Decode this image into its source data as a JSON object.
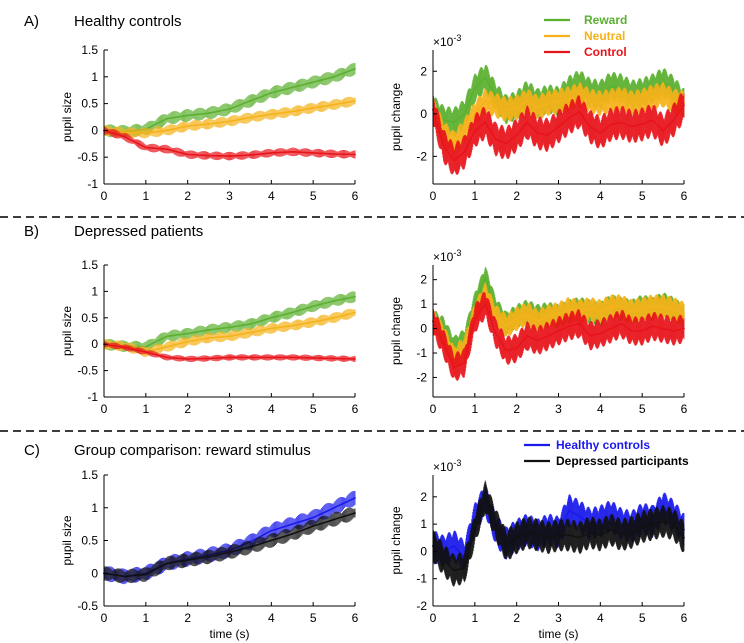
{
  "panels": [
    {
      "letter": "A)",
      "title": "Healthy controls"
    },
    {
      "letter": "B)",
      "title": "Depressed patients"
    },
    {
      "letter": "C)",
      "title": "Group comparison: reward stimulus"
    }
  ],
  "exponent_label": "×10",
  "exponent_power": "-3",
  "colors": {
    "Reward": "#5bb030",
    "Neutral": "#f5b21a",
    "Control": "#e8141b",
    "Healthy controls": "#1a1aeb",
    "Depressed participants": "#111111"
  },
  "chart_data": [
    {
      "id": "A-size",
      "type": "line",
      "panel": "A)",
      "xlabel": "",
      "ylabel": "pupil size",
      "xlim": [
        0,
        6
      ],
      "ylim": [
        -1,
        1.5
      ],
      "xticks": [
        "0",
        "1",
        "2",
        "3",
        "4",
        "5",
        "6"
      ],
      "yticks": [
        "-1",
        "-0.5",
        "0",
        "0.5",
        "1",
        "1.5"
      ],
      "x": [
        0,
        0.5,
        1,
        1.5,
        2,
        2.5,
        3,
        3.5,
        4,
        4.5,
        5,
        5.5,
        6
      ],
      "series": [
        {
          "name": "Reward",
          "values": [
            0,
            -0.02,
            0.02,
            0.22,
            0.28,
            0.32,
            0.4,
            0.55,
            0.7,
            0.8,
            0.9,
            1.0,
            1.15
          ],
          "err": 0.12
        },
        {
          "name": "Neutral",
          "values": [
            0,
            -0.04,
            -0.05,
            0.0,
            0.08,
            0.12,
            0.17,
            0.24,
            0.3,
            0.35,
            0.42,
            0.48,
            0.55
          ],
          "err": 0.1
        },
        {
          "name": "Control",
          "values": [
            0,
            -0.12,
            -0.32,
            -0.35,
            -0.45,
            -0.47,
            -0.48,
            -0.46,
            -0.42,
            -0.4,
            -0.42,
            -0.44,
            -0.45
          ],
          "err": 0.08
        }
      ]
    },
    {
      "id": "A-change",
      "type": "line",
      "panel": "A)",
      "xlabel": "",
      "ylabel": "pupil change",
      "scale_exponent": "-3",
      "xlim": [
        0,
        6
      ],
      "ylim": [
        -3.3,
        3
      ],
      "xticks": [
        "0",
        "1",
        "2",
        "3",
        "4",
        "5",
        "6"
      ],
      "yticks": [
        "-2",
        "0",
        "2"
      ],
      "legend": {
        "position": "top-right",
        "entries": [
          "Reward",
          "Neutral",
          "Control"
        ]
      },
      "x": [
        0,
        0.25,
        0.5,
        0.75,
        1,
        1.25,
        1.5,
        1.75,
        2,
        2.25,
        2.5,
        2.75,
        3,
        3.25,
        3.5,
        3.75,
        4,
        4.25,
        4.5,
        4.75,
        5,
        5.25,
        5.5,
        5.75,
        6
      ],
      "series": [
        {
          "name": "Reward",
          "values": [
            0.2,
            -0.3,
            -0.4,
            0.0,
            1.2,
            1.7,
            0.8,
            0.2,
            0.4,
            0.9,
            0.5,
            0.7,
            0.6,
            1.1,
            1.4,
            1.0,
            0.9,
            1.3,
            1.2,
            0.9,
            1.0,
            1.2,
            1.5,
            1.1,
            0.5
          ],
          "err": 0.7
        },
        {
          "name": "Neutral",
          "values": [
            0.2,
            -0.9,
            -1.4,
            -0.8,
            0.0,
            0.6,
            0.4,
            0.2,
            0.3,
            0.6,
            0.3,
            0.5,
            0.6,
            0.7,
            0.9,
            0.6,
            0.5,
            0.6,
            0.7,
            0.5,
            0.6,
            0.8,
            0.9,
            0.6,
            0.5
          ],
          "err": 0.6
        },
        {
          "name": "Control",
          "values": [
            0.2,
            -1.5,
            -2.2,
            -1.8,
            -0.8,
            -0.4,
            -1.2,
            -1.4,
            -1.0,
            -0.4,
            -0.9,
            -1.0,
            -0.6,
            -0.2,
            0.1,
            -0.6,
            -0.9,
            -0.5,
            -0.4,
            -0.6,
            -0.5,
            -0.3,
            -0.8,
            -0.3,
            0.4
          ],
          "err": 0.8
        }
      ]
    },
    {
      "id": "B-size",
      "type": "line",
      "panel": "B)",
      "xlabel": "",
      "ylabel": "pupil size",
      "xlim": [
        0,
        6
      ],
      "ylim": [
        -1,
        1.5
      ],
      "xticks": [
        "0",
        "1",
        "2",
        "3",
        "4",
        "5",
        "6"
      ],
      "yticks": [
        "-1",
        "-0.5",
        "0",
        "0.5",
        "1",
        "1.5"
      ],
      "x": [
        0,
        0.5,
        1,
        1.5,
        2,
        2.5,
        3,
        3.5,
        4,
        4.5,
        5,
        5.5,
        6
      ],
      "series": [
        {
          "name": "Reward",
          "values": [
            0,
            -0.04,
            -0.05,
            0.15,
            0.2,
            0.27,
            0.32,
            0.38,
            0.5,
            0.6,
            0.72,
            0.82,
            0.9
          ],
          "err": 0.11
        },
        {
          "name": "Neutral",
          "values": [
            0,
            -0.04,
            -0.15,
            -0.05,
            0.05,
            0.12,
            0.15,
            0.22,
            0.3,
            0.35,
            0.42,
            0.5,
            0.6
          ],
          "err": 0.1
        },
        {
          "name": "Control",
          "values": [
            0,
            -0.06,
            -0.15,
            -0.25,
            -0.28,
            -0.27,
            -0.25,
            -0.25,
            -0.25,
            -0.25,
            -0.26,
            -0.27,
            -0.28
          ],
          "err": 0.06
        }
      ]
    },
    {
      "id": "B-change",
      "type": "line",
      "panel": "B)",
      "xlabel": "",
      "ylabel": "pupil change",
      "scale_exponent": "-3",
      "xlim": [
        0,
        6
      ],
      "ylim": [
        -2.8,
        2.6
      ],
      "xticks": [
        "0",
        "1",
        "2",
        "3",
        "4",
        "5",
        "6"
      ],
      "yticks": [
        "-2",
        "-1",
        "0",
        "1",
        "2"
      ],
      "x": [
        0,
        0.25,
        0.5,
        0.75,
        1,
        1.25,
        1.5,
        1.75,
        2,
        2.25,
        2.5,
        2.75,
        3,
        3.25,
        3.5,
        3.75,
        4,
        4.25,
        4.5,
        4.75,
        5,
        5.25,
        5.5,
        5.75,
        6
      ],
      "series": [
        {
          "name": "Reward",
          "values": [
            0.3,
            0.0,
            -0.8,
            -0.5,
            1.0,
            2.1,
            0.8,
            0.2,
            0.5,
            0.7,
            0.5,
            0.6,
            0.5,
            0.7,
            0.8,
            0.7,
            0.6,
            0.9,
            0.8,
            0.7,
            0.9,
            0.8,
            1.0,
            0.8,
            0.5
          ],
          "err": 0.5
        },
        {
          "name": "Neutral",
          "values": [
            0.3,
            -0.3,
            -1.2,
            -0.8,
            0.6,
            1.4,
            0.5,
            0.1,
            0.4,
            0.6,
            0.3,
            0.5,
            0.6,
            0.8,
            0.7,
            0.8,
            0.7,
            0.9,
            0.9,
            0.7,
            0.8,
            0.9,
            0.9,
            0.8,
            0.6
          ],
          "err": 0.5
        },
        {
          "name": "Control",
          "values": [
            0.3,
            -0.6,
            -1.6,
            -1.4,
            0.4,
            1.0,
            -0.2,
            -0.9,
            -0.8,
            -0.3,
            -0.5,
            -0.3,
            -0.1,
            0.1,
            0.2,
            -0.3,
            -0.2,
            0.0,
            0.2,
            -0.1,
            -0.1,
            0.1,
            0.0,
            -0.1,
            0.0
          ],
          "err": 0.6
        }
      ]
    },
    {
      "id": "C-size",
      "type": "line",
      "panel": "C)",
      "xlabel": "time (s)",
      "ylabel": "pupil size",
      "xlim": [
        0,
        6
      ],
      "ylim": [
        -0.5,
        1.5
      ],
      "xticks": [
        "0",
        "1",
        "2",
        "3",
        "4",
        "5",
        "6"
      ],
      "yticks": [
        "-0.5",
        "0",
        "0.5",
        "1",
        "1.5"
      ],
      "x": [
        0,
        0.5,
        1,
        1.5,
        2,
        2.5,
        3,
        3.5,
        4,
        4.5,
        5,
        5.5,
        6
      ],
      "series": [
        {
          "name": "Healthy controls",
          "values": [
            0,
            -0.05,
            0.0,
            0.15,
            0.22,
            0.28,
            0.35,
            0.48,
            0.65,
            0.75,
            0.85,
            1.0,
            1.15
          ],
          "err": 0.12
        },
        {
          "name": "Depressed participants",
          "values": [
            0,
            -0.05,
            -0.02,
            0.15,
            0.2,
            0.25,
            0.32,
            0.4,
            0.5,
            0.6,
            0.72,
            0.82,
            0.92
          ],
          "err": 0.11
        }
      ]
    },
    {
      "id": "C-change",
      "type": "line",
      "panel": "C)",
      "xlabel": "time (s)",
      "ylabel": "pupil change",
      "scale_exponent": "-3",
      "xlim": [
        0,
        6
      ],
      "ylim": [
        -2,
        2.8
      ],
      "xticks": [
        "0",
        "1",
        "2",
        "3",
        "4",
        "5",
        "6"
      ],
      "yticks": [
        "-2",
        "-1",
        "0",
        "1",
        "2"
      ],
      "legend": {
        "position": "top-right",
        "entries": [
          "Healthy controls",
          "Depressed participants"
        ]
      },
      "x": [
        0,
        0.25,
        0.5,
        0.75,
        1,
        1.25,
        1.5,
        1.75,
        2,
        2.25,
        2.5,
        2.75,
        3,
        3.25,
        3.5,
        3.75,
        4,
        4.25,
        4.5,
        4.75,
        5,
        5.25,
        5.5,
        5.75,
        6
      ],
      "series": [
        {
          "name": "Healthy controls",
          "values": [
            0.2,
            0.0,
            0.2,
            -0.2,
            1.2,
            1.9,
            0.8,
            0.3,
            0.6,
            0.8,
            0.6,
            0.8,
            0.7,
            1.5,
            1.3,
            1.0,
            1.1,
            1.3,
            1.0,
            0.9,
            1.2,
            1.1,
            1.6,
            1.3,
            0.8
          ],
          "err": 0.6
        },
        {
          "name": "Depressed participants",
          "values": [
            0.2,
            -0.3,
            -0.7,
            -0.6,
            0.8,
            2.0,
            1.0,
            0.2,
            0.5,
            0.7,
            0.6,
            0.5,
            0.6,
            0.6,
            0.5,
            0.7,
            0.6,
            0.8,
            0.6,
            0.7,
            0.9,
            1.0,
            1.1,
            1.0,
            0.5
          ],
          "err": 0.6
        }
      ]
    }
  ]
}
